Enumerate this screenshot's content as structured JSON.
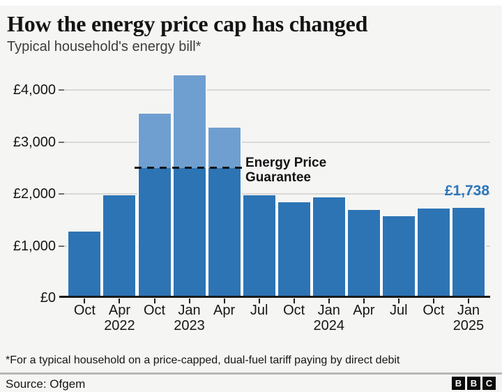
{
  "header": {
    "title": "How the energy price cap has changed",
    "subtitle": "Typical household's energy bill*"
  },
  "chart_data": {
    "type": "bar",
    "title": "How the energy price cap has changed",
    "subtitle": "Typical household's energy bill*",
    "unit": "£ per year",
    "categories": [
      "Oct 2021",
      "Apr 2022",
      "Oct 2022",
      "Jan 2023",
      "Apr 2023",
      "Jul 2023",
      "Oct 2023",
      "Jan 2024",
      "Apr 2024",
      "Jul 2024",
      "Oct 2024",
      "Jan 2025"
    ],
    "x_tick_labels": [
      {
        "month": "Oct",
        "year": ""
      },
      {
        "month": "Apr",
        "year": "2022"
      },
      {
        "month": "Oct",
        "year": ""
      },
      {
        "month": "Jan",
        "year": "2023"
      },
      {
        "month": "Apr",
        "year": ""
      },
      {
        "month": "Jul",
        "year": ""
      },
      {
        "month": "Oct",
        "year": ""
      },
      {
        "month": "Jan",
        "year": "2024"
      },
      {
        "month": "Apr",
        "year": ""
      },
      {
        "month": "Jul",
        "year": ""
      },
      {
        "month": "Oct",
        "year": ""
      },
      {
        "month": "Jan",
        "year": "2025"
      }
    ],
    "values": [
      1277,
      1971,
      3549,
      4279,
      3280,
      1976,
      1834,
      1928,
      1690,
      1568,
      1717,
      1738
    ],
    "ylim": [
      0,
      4400
    ],
    "grid": true,
    "y_ticks": [
      {
        "label": "£0",
        "value": 0
      },
      {
        "label": "£1,000",
        "value": 1000
      },
      {
        "label": "£2,000",
        "value": 2000
      },
      {
        "label": "£3,000",
        "value": 3000
      },
      {
        "label": "£4,000",
        "value": 4000
      }
    ],
    "annotation": {
      "lines": [
        "Energy Price",
        "Guarantee"
      ],
      "value": 2500,
      "line_style": "dashed",
      "capped_bar_indexes": [
        2,
        3,
        4
      ]
    },
    "last_value_label": "£1,738",
    "colors": {
      "bar": "#2d74b5",
      "bar_above_cap": "#6f9fd0",
      "value_label": "#2b76ba",
      "gridline": "#d8d8d6",
      "axis": "#1a1a1a"
    }
  },
  "footer": {
    "footnote": "*For a typical household on a price-capped, dual-fuel tariff paying by direct debit",
    "source": "Source: Ofgem",
    "logo_letters": [
      "B",
      "B",
      "C"
    ]
  }
}
